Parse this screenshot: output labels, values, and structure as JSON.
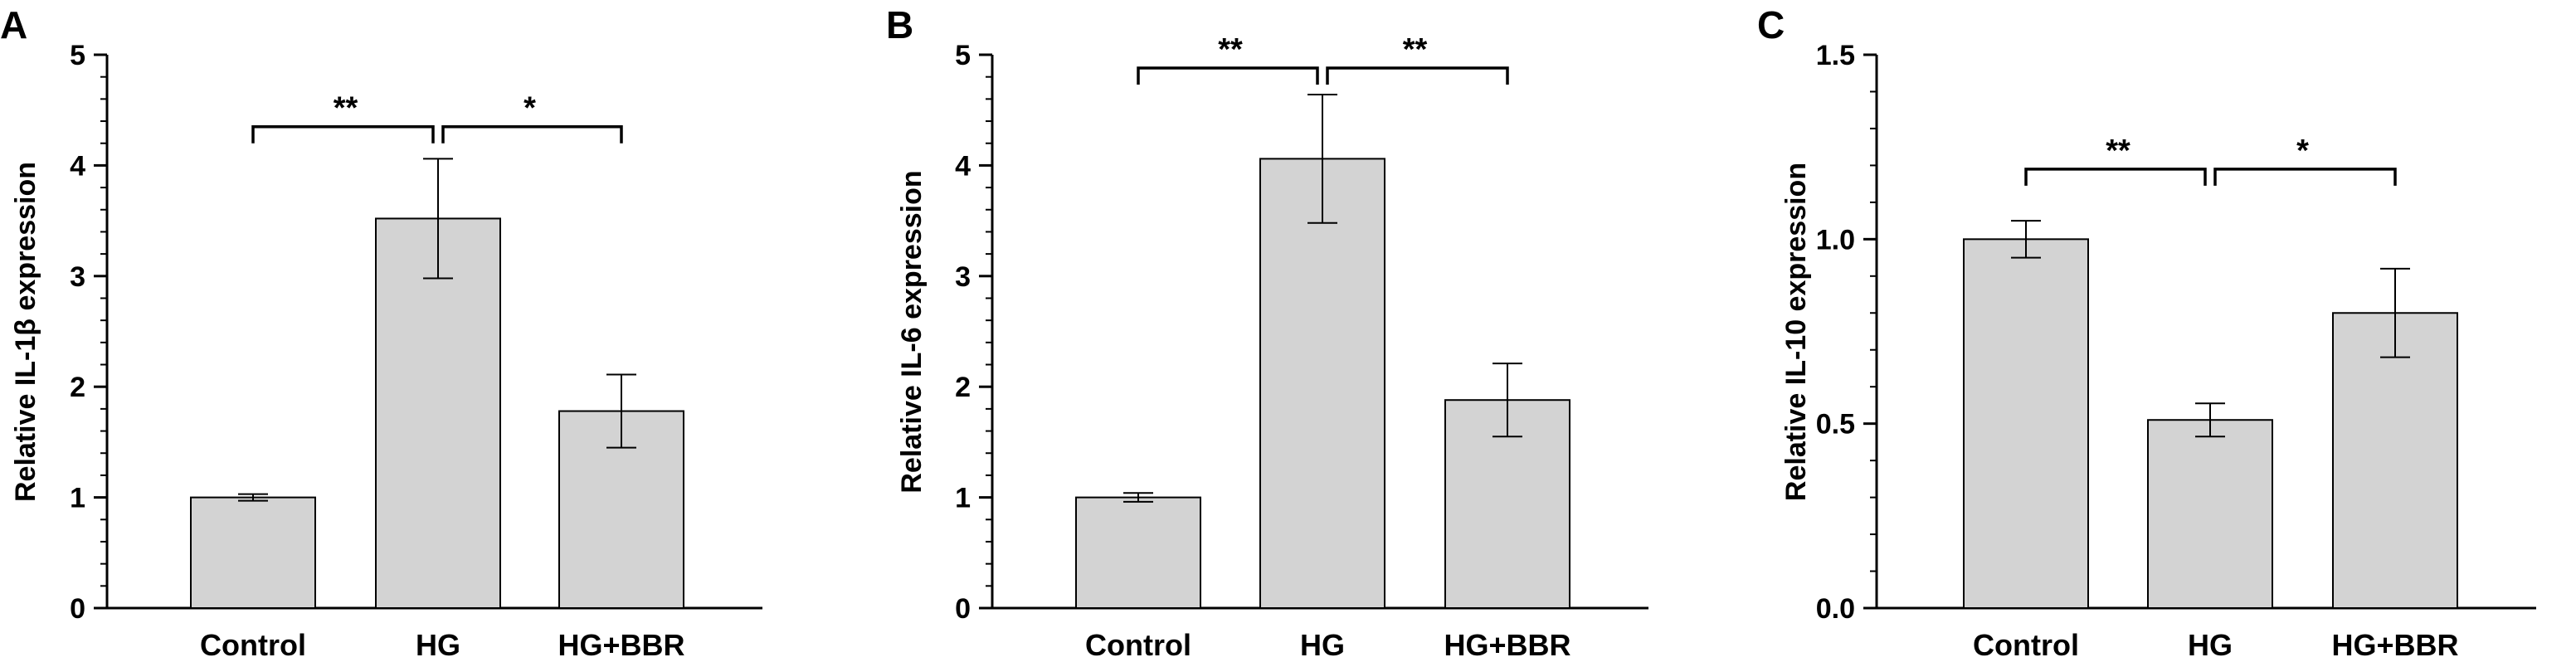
{
  "colors": {
    "bar_fill": "#d3d3d3",
    "stroke": "#000000",
    "background": "#ffffff"
  },
  "chart_data": [
    {
      "panel_label": "A",
      "type": "bar",
      "categories": [
        "Control",
        "HG",
        "HG+BBR"
      ],
      "values": [
        1.0,
        3.52,
        1.78
      ],
      "errors": [
        0.03,
        0.54,
        0.33
      ],
      "ylabel": "Relative  IL-1β expression",
      "ylim": [
        0,
        5
      ],
      "yticks": [
        0,
        1,
        2,
        3,
        4,
        5
      ],
      "ytick_labels": [
        "0",
        "1",
        "2",
        "3",
        "4",
        "5"
      ],
      "significance": [
        {
          "from": 0,
          "to": 1,
          "label": "**",
          "y": 4.35
        },
        {
          "from": 1,
          "to": 2,
          "label": "*",
          "y": 4.35
        }
      ]
    },
    {
      "panel_label": "B",
      "type": "bar",
      "categories": [
        "Control",
        "HG",
        "HG+BBR"
      ],
      "values": [
        1.0,
        4.06,
        1.88
      ],
      "errors": [
        0.04,
        0.58,
        0.33
      ],
      "ylabel": "Relative  IL-6 expression",
      "ylim": [
        0,
        5
      ],
      "yticks": [
        0,
        1,
        2,
        3,
        4,
        5
      ],
      "ytick_labels": [
        "0",
        "1",
        "2",
        "3",
        "4",
        "5"
      ],
      "significance": [
        {
          "from": 0,
          "to": 1,
          "label": "**",
          "y": 4.88
        },
        {
          "from": 1,
          "to": 2,
          "label": "**",
          "y": 4.88
        }
      ]
    },
    {
      "panel_label": "C",
      "type": "bar",
      "categories": [
        "Control",
        "HG",
        "HG+BBR"
      ],
      "values": [
        1.0,
        0.51,
        0.8
      ],
      "errors": [
        0.05,
        0.045,
        0.12
      ],
      "ylabel": "Relative  IL-10 expression",
      "ylim": [
        0,
        1.5
      ],
      "yticks": [
        0,
        0.5,
        1.0,
        1.5
      ],
      "ytick_labels": [
        "0.0",
        "0.5",
        "1.0",
        "1.5"
      ],
      "significance": [
        {
          "from": 0,
          "to": 1,
          "label": "**",
          "y": 1.19
        },
        {
          "from": 1,
          "to": 2,
          "label": "*",
          "y": 1.19
        }
      ]
    }
  ]
}
